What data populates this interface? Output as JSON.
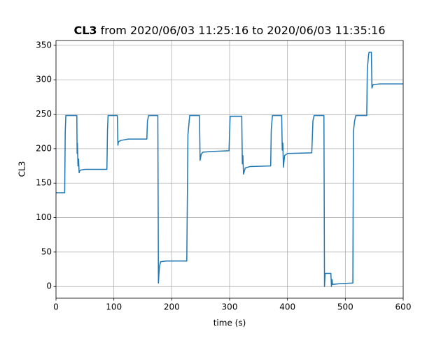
{
  "chart_data": {
    "type": "line",
    "title": {
      "bold": "CL3",
      "rest": "from 2020/06/03 11:25:16 to 2020/06/03 11:35:16"
    },
    "x_label": "time (s)",
    "y_label": "CL3",
    "series": [
      {
        "name": "CL3",
        "color": "#1f77b4",
        "x": [
          0,
          15,
          16,
          17,
          36,
          36.5,
          37,
          38,
          39,
          40,
          41,
          43,
          50,
          88,
          89,
          90,
          106,
          107,
          108,
          112,
          125,
          157,
          158,
          160,
          176,
          177,
          178,
          179,
          181,
          190,
          226,
          228,
          231,
          248,
          249,
          251,
          254,
          270,
          299,
          300,
          301,
          321,
          322,
          323,
          324,
          327,
          335,
          371,
          372,
          374,
          390,
          391,
          392,
          393,
          395,
          400,
          442,
          444,
          446,
          463,
          464,
          465,
          475,
          476,
          477,
          478,
          490,
          513,
          514,
          516,
          518,
          537,
          538,
          540,
          541,
          545,
          546,
          548,
          560,
          600
        ],
        "values": [
          136,
          136,
          225,
          248,
          248,
          193,
          208,
          175,
          185,
          165,
          168,
          169,
          170,
          170,
          228,
          248,
          248,
          205,
          210,
          212,
          214,
          214,
          240,
          248,
          248,
          5,
          20,
          30,
          36,
          37,
          37,
          220,
          248,
          248,
          183,
          192,
          195,
          196,
          197,
          225,
          247,
          247,
          178,
          190,
          163,
          172,
          174,
          175,
          228,
          248,
          248,
          198,
          208,
          173,
          190,
          193,
          194,
          240,
          248,
          248,
          0,
          19,
          19,
          0,
          10,
          3,
          4,
          5,
          225,
          240,
          248,
          248,
          315,
          335,
          340,
          340,
          288,
          293,
          294,
          294
        ]
      }
    ],
    "xlim": [
      0,
      600
    ],
    "xticks": [
      0,
      100,
      200,
      300,
      400,
      500,
      600
    ],
    "ylim": [
      -17,
      357
    ],
    "yticks": [
      0,
      50,
      100,
      150,
      200,
      250,
      300,
      350
    ],
    "grid": true
  }
}
